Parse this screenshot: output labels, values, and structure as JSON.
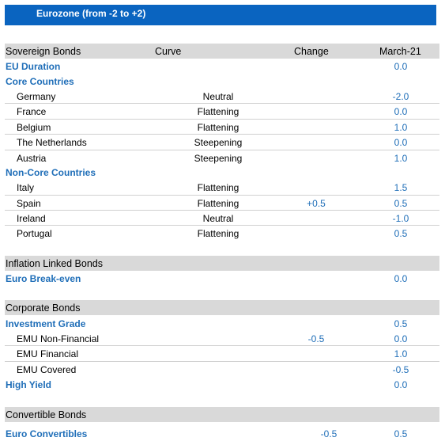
{
  "title": "Eurozone (from -2 to +2)",
  "sovereign": {
    "header": {
      "label": "Sovereign Bonds",
      "curve": "Curve",
      "change": "Change",
      "month": "March-21"
    },
    "eu_duration": {
      "label": "EU Duration",
      "value": "0.0"
    },
    "core": {
      "label": "Core Countries",
      "items": [
        {
          "name": "Germany",
          "curve": "Neutral",
          "change": "",
          "value": "-2.0"
        },
        {
          "name": "France",
          "curve": "Flattening",
          "change": "",
          "value": "0.0"
        },
        {
          "name": "Belgium",
          "curve": "Flattening",
          "change": "",
          "value": "1.0"
        },
        {
          "name": "The Netherlands",
          "curve": "Steepening",
          "change": "",
          "value": "0.0"
        },
        {
          "name": "Austria",
          "curve": "Steepening",
          "change": "",
          "value": "1.0"
        }
      ]
    },
    "noncore": {
      "label": "Non-Core Countries",
      "items": [
        {
          "name": "Italy",
          "curve": "Flattening",
          "change": "",
          "value": "1.5"
        },
        {
          "name": "Spain",
          "curve": "Flattening",
          "change": "+0.5",
          "value": "0.5"
        },
        {
          "name": "Ireland",
          "curve": "Neutral",
          "change": "",
          "value": "-1.0"
        },
        {
          "name": "Portugal",
          "curve": "Flattening",
          "change": "",
          "value": "0.5"
        }
      ]
    }
  },
  "inflation": {
    "header": "Inflation Linked Bonds",
    "breakeven": {
      "label": "Euro Break-even",
      "value": "0.0"
    }
  },
  "corporate": {
    "header": "Corporate Bonds",
    "ig": {
      "label": "Investment Grade",
      "value": "0.5"
    },
    "items": [
      {
        "name": "EMU Non-Financial",
        "change": "-0.5",
        "value": "0.0"
      },
      {
        "name": "EMU Financial",
        "change": "",
        "value": "1.0"
      },
      {
        "name": "EMU Covered",
        "change": "",
        "value": "-0.5"
      }
    ],
    "hy": {
      "label": "High Yield",
      "value": "0.0"
    }
  },
  "convertible": {
    "header": "Convertible Bonds",
    "euro": {
      "label": "Euro Convertibles",
      "change": "-0.5",
      "value": "0.5"
    }
  }
}
